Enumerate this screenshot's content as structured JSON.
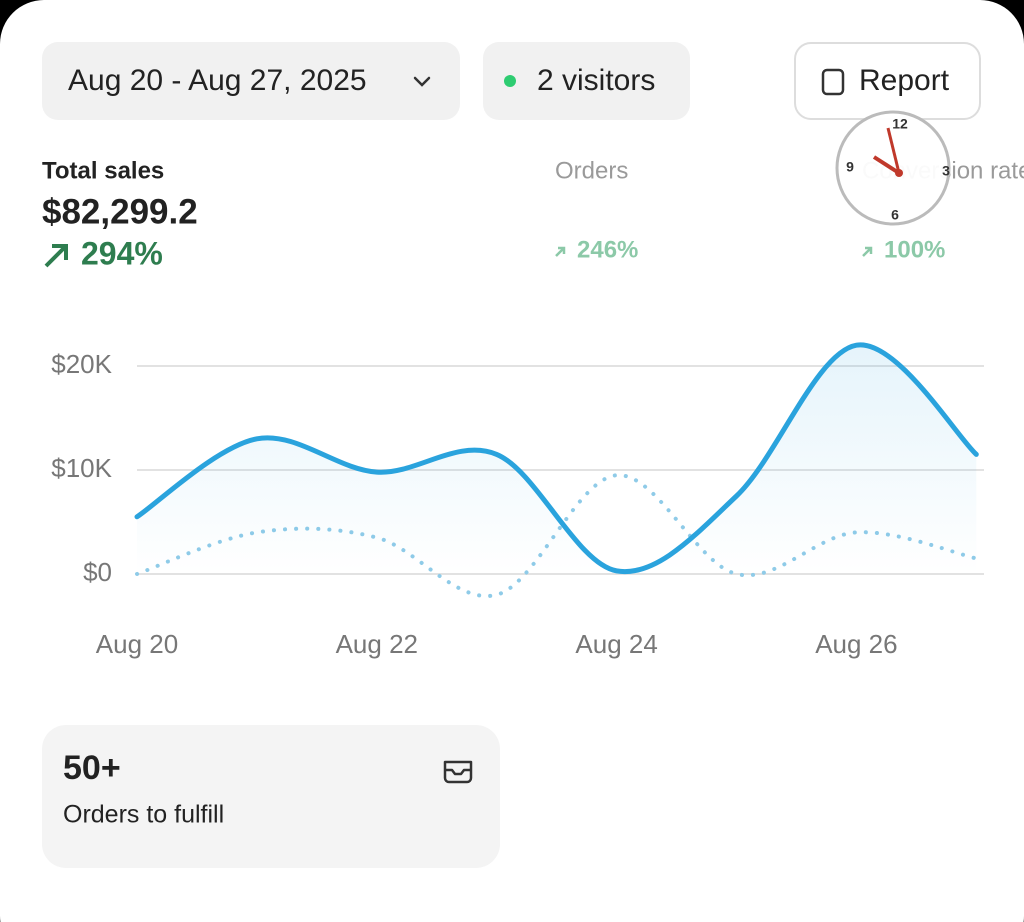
{
  "filters": {
    "date_range": "Aug 20 - Aug 27, 2025",
    "visitors": "2 visitors",
    "report": "Report"
  },
  "metrics": [
    {
      "label": "Total sales",
      "value": "$82,299.2",
      "change": "294%"
    },
    {
      "label": "Orders",
      "change": "246%"
    },
    {
      "label": "Conversion rate",
      "change": "100%"
    }
  ],
  "clock": {
    "numerals": [
      "12",
      "3",
      "6",
      "9"
    ]
  },
  "chart_data": {
    "type": "line",
    "categories": [
      "Aug 20",
      null,
      "Aug 22",
      null,
      "Aug 24",
      null,
      "Aug 26",
      null
    ],
    "series": [
      {
        "color": "#2aa3dd",
        "style": "solid",
        "values": [
          5500,
          13000,
          9800,
          11500,
          300,
          7500,
          22000,
          11500
        ]
      },
      {
        "color": "#8fcbe8",
        "style": "dotted",
        "values": [
          0,
          4000,
          3500,
          -2000,
          9500,
          0,
          4000,
          1500
        ]
      }
    ],
    "ylim": [
      -3000,
      24000
    ],
    "yticks": [
      {
        "value": 0,
        "label": "$0"
      },
      {
        "value": 10000,
        "label": "$10K"
      },
      {
        "value": 20000,
        "label": "$20K"
      }
    ],
    "grid": true
  },
  "fulfill_card": {
    "count": "50+",
    "label": "Orders to fulfill"
  }
}
